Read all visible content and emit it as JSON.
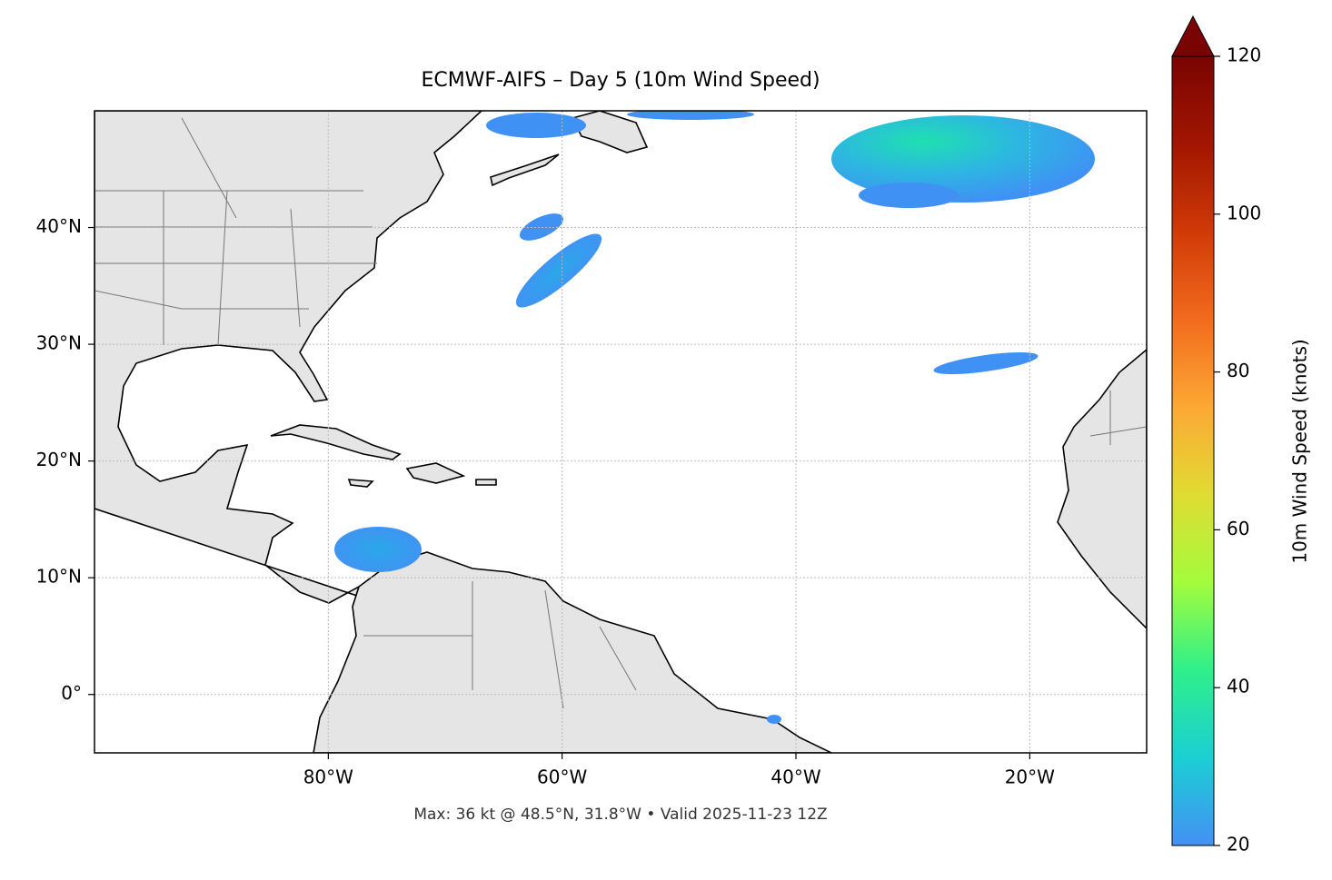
{
  "chart_data": {
    "type": "map",
    "title": "ECMWF-AIFS – Day 5 (10m Wind Speed)",
    "footer": "Max: 36 kt @ 48.5°N, 31.8°W • Valid 2025-11-23 12Z",
    "xlim": [
      -100,
      -10
    ],
    "ylim": [
      -5,
      50
    ],
    "xticks": [
      {
        "value": -80,
        "label": "80°W"
      },
      {
        "value": -60,
        "label": "60°W"
      },
      {
        "value": -40,
        "label": "40°W"
      },
      {
        "value": -20,
        "label": "20°W"
      }
    ],
    "yticks": [
      {
        "value": 0,
        "label": "0°"
      },
      {
        "value": 10,
        "label": "10°N"
      },
      {
        "value": 20,
        "label": "20°N"
      },
      {
        "value": 30,
        "label": "30°N"
      },
      {
        "value": 40,
        "label": "40°N"
      }
    ],
    "grid": true,
    "colorbar": {
      "label": "10m Wind Speed (knots)",
      "lim": [
        20,
        120
      ],
      "ticks": [
        20,
        40,
        60,
        80,
        100,
        120
      ],
      "extend": "max",
      "colors": [
        "#4490f5",
        "#1bcfd4",
        "#2ef08a",
        "#a4fc3c",
        "#e0dc33",
        "#fca834",
        "#f26b1d",
        "#d03a08",
        "#a11601",
        "#7a0403"
      ]
    }
  }
}
